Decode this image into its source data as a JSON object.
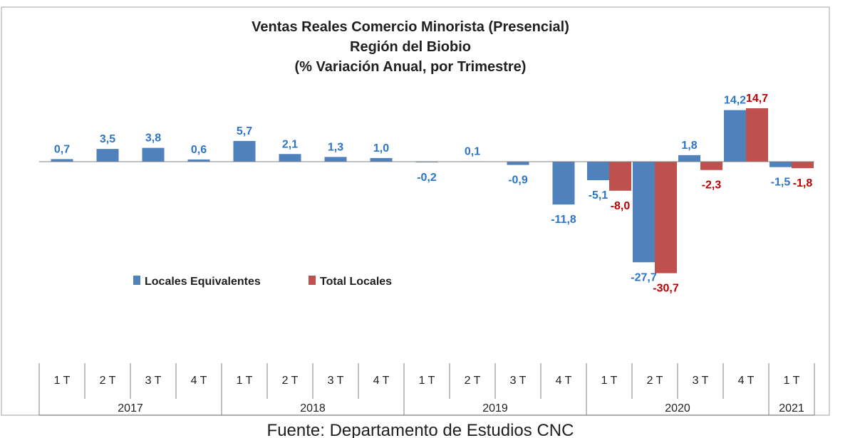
{
  "chart_data": {
    "type": "bar",
    "title_lines": [
      "Ventas Reales Comercio Minorista (Presencial)",
      "Región del Biobio",
      "(% Variación Anual, por Trimestre)"
    ],
    "categories": [
      "1 T",
      "2 T",
      "3 T",
      "4 T",
      "1 T",
      "2 T",
      "3 T",
      "4 T",
      "1 T",
      "2 T",
      "3 T",
      "4 T",
      "1 T",
      "2 T",
      "3 T",
      "4 T",
      "1 T"
    ],
    "groups": [
      {
        "label": "2017",
        "count": 4
      },
      {
        "label": "2018",
        "count": 4
      },
      {
        "label": "2019",
        "count": 4
      },
      {
        "label": "2020",
        "count": 4
      },
      {
        "label": "2021",
        "count": 1
      }
    ],
    "series": [
      {
        "name": "Locales Equivalentes",
        "color": "#4f81bd",
        "label_color": "#2e75c4",
        "values": [
          0.7,
          3.5,
          3.8,
          0.6,
          5.7,
          2.1,
          1.3,
          1.0,
          -0.2,
          0.1,
          -0.9,
          -11.8,
          -5.1,
          -27.7,
          1.8,
          14.2,
          -1.5
        ],
        "labels": [
          "0,7",
          "3,5",
          "3,8",
          "0,6",
          "5,7",
          "2,1",
          "1,3",
          "1,0",
          "-0,2",
          "0,1",
          "-0,9",
          "-11,8",
          "-5,1",
          "-27,7",
          "1,8",
          "14,2",
          "-1,5"
        ]
      },
      {
        "name": "Total Locales",
        "color": "#c0504d",
        "label_color": "#c00000",
        "values": [
          null,
          null,
          null,
          null,
          null,
          null,
          null,
          null,
          null,
          null,
          null,
          null,
          -8.0,
          -30.7,
          -2.3,
          14.7,
          -1.8
        ],
        "labels": [
          "",
          "",
          "",
          "",
          "",
          "",
          "",
          "",
          "",
          "",
          "",
          "",
          "-8,0",
          "-30,7",
          "-2,3",
          "14,7",
          "-1,8"
        ]
      }
    ],
    "legend_position": "middle-left",
    "grid": false,
    "ylim": [
      -32,
      16
    ]
  },
  "source": "Fuente: Departamento de Estudios CNC"
}
